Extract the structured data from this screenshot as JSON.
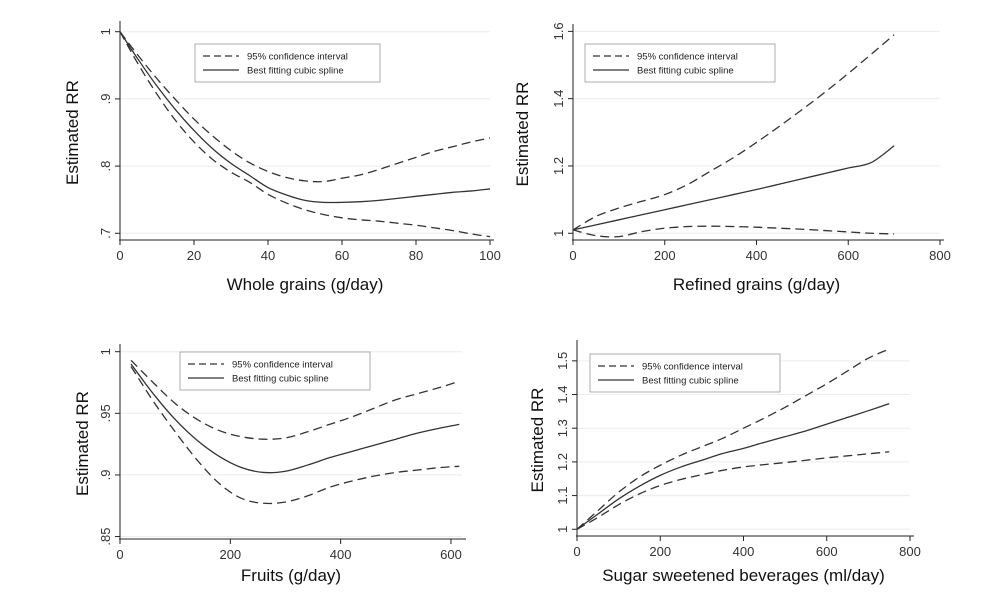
{
  "chart_data": [
    {
      "type": "line",
      "title": "",
      "xlabel": "Whole grains (g/day)",
      "ylabel": "Estimated RR",
      "xlim": [
        0,
        100
      ],
      "ylim": [
        0.69,
        1.01
      ],
      "x_ticks": [
        0,
        20,
        40,
        60,
        80,
        100
      ],
      "x_tick_labels": [
        "0",
        "20",
        "40",
        "60",
        "80",
        "100"
      ],
      "y_ticks": [
        0.7,
        0.8,
        0.9,
        1.0
      ],
      "y_tick_labels": [
        ".7",
        ".8",
        ".9",
        "1"
      ],
      "grid": true,
      "legend": {
        "placement": "top-center",
        "items": [
          "95% confidence interval",
          "Best fitting cubic spline"
        ]
      },
      "series": [
        {
          "name": "95% confidence interval",
          "style": "dashed",
          "x": [
            0,
            5,
            10,
            15,
            20,
            25,
            30,
            35,
            40,
            45,
            50,
            55,
            60,
            65,
            70,
            75,
            80,
            85,
            90,
            95,
            100
          ],
          "y": [
            1.0,
            0.951,
            0.907,
            0.868,
            0.836,
            0.81,
            0.791,
            0.776,
            0.758,
            0.745,
            0.735,
            0.728,
            0.723,
            0.72,
            0.718,
            0.715,
            0.712,
            0.708,
            0.704,
            0.699,
            0.695
          ]
        },
        {
          "name": "Best fitting cubic spline",
          "style": "solid",
          "x": [
            0,
            5,
            10,
            15,
            20,
            25,
            30,
            35,
            40,
            45,
            50,
            55,
            60,
            65,
            70,
            75,
            80,
            85,
            90,
            95,
            100
          ],
          "y": [
            1.0,
            0.958,
            0.919,
            0.884,
            0.853,
            0.826,
            0.804,
            0.786,
            0.768,
            0.757,
            0.749,
            0.746,
            0.746,
            0.747,
            0.749,
            0.752,
            0.755,
            0.758,
            0.761,
            0.763,
            0.766
          ]
        },
        {
          "name": "95% confidence interval",
          "style": "dashed",
          "x": [
            0,
            5,
            10,
            15,
            20,
            25,
            30,
            35,
            40,
            45,
            50,
            55,
            60,
            65,
            70,
            75,
            80,
            85,
            90,
            95,
            100
          ],
          "y": [
            1.0,
            0.964,
            0.93,
            0.899,
            0.87,
            0.845,
            0.823,
            0.805,
            0.792,
            0.783,
            0.778,
            0.777,
            0.782,
            0.787,
            0.795,
            0.804,
            0.813,
            0.822,
            0.829,
            0.836,
            0.842
          ]
        }
      ]
    },
    {
      "type": "line",
      "title": "",
      "xlabel": "Refined grains (g/day)",
      "ylabel": "Estimated RR",
      "xlim": [
        0,
        800
      ],
      "ylim": [
        0.98,
        1.61
      ],
      "x_ticks": [
        0,
        200,
        400,
        600,
        800
      ],
      "x_tick_labels": [
        "0",
        "200",
        "400",
        "600",
        "800"
      ],
      "y_ticks": [
        1.0,
        1.2,
        1.4,
        1.6
      ],
      "y_tick_labels": [
        "1",
        "1.2",
        "1.4",
        "1.6"
      ],
      "grid": true,
      "legend": {
        "placement": "top-left",
        "items": [
          "95% confidence interval",
          "Best fitting cubic spline"
        ]
      },
      "series": [
        {
          "name": "95% confidence interval",
          "style": "dashed",
          "x": [
            0,
            50,
            100,
            150,
            200,
            250,
            300,
            350,
            400,
            450,
            500,
            550,
            600,
            650,
            700
          ],
          "y": [
            1.01,
            0.993,
            0.99,
            1.005,
            1.015,
            1.02,
            1.021,
            1.02,
            1.018,
            1.015,
            1.012,
            1.008,
            1.004,
            1.0,
            0.998
          ]
        },
        {
          "name": "Best fitting cubic spline",
          "style": "solid",
          "x": [
            0,
            50,
            100,
            150,
            200,
            250,
            300,
            350,
            400,
            450,
            500,
            550,
            600,
            650,
            700
          ],
          "y": [
            1.01,
            1.025,
            1.04,
            1.055,
            1.07,
            1.085,
            1.1,
            1.115,
            1.13,
            1.146,
            1.162,
            1.178,
            1.194,
            1.21,
            1.26
          ]
        },
        {
          "name": "95% confidence interval",
          "style": "dashed",
          "x": [
            0,
            50,
            100,
            150,
            200,
            250,
            300,
            350,
            400,
            450,
            500,
            550,
            600,
            650,
            700
          ],
          "y": [
            1.01,
            1.05,
            1.075,
            1.095,
            1.115,
            1.145,
            1.185,
            1.225,
            1.27,
            1.318,
            1.368,
            1.42,
            1.475,
            1.532,
            1.59
          ]
        }
      ]
    },
    {
      "type": "line",
      "title": "",
      "xlabel": "Fruits (g/day)",
      "ylabel": "Estimated RR",
      "xlim": [
        0,
        620
      ],
      "ylim": [
        0.848,
        1.003
      ],
      "x_ticks": [
        0,
        200,
        400,
        600
      ],
      "x_tick_labels": [
        "0",
        "200",
        "400",
        "600"
      ],
      "y_ticks": [
        0.85,
        0.9,
        0.95,
        1.0
      ],
      "y_tick_labels": [
        ".85",
        ".9",
        ".95",
        "1"
      ],
      "grid": true,
      "legend": {
        "placement": "top-center",
        "items": [
          "95% confidence interval",
          "Best fitting cubic spline"
        ]
      },
      "series": [
        {
          "name": "95% confidence interval",
          "style": "dashed",
          "x": [
            20,
            60,
            100,
            140,
            180,
            220,
            260,
            300,
            340,
            380,
            420,
            460,
            500,
            540,
            580,
            615
          ],
          "y": [
            0.988,
            0.96,
            0.935,
            0.912,
            0.893,
            0.881,
            0.877,
            0.878,
            0.883,
            0.89,
            0.895,
            0.899,
            0.902,
            0.904,
            0.906,
            0.907
          ]
        },
        {
          "name": "Best fitting cubic spline",
          "style": "solid",
          "x": [
            20,
            60,
            100,
            140,
            180,
            220,
            260,
            300,
            340,
            380,
            420,
            460,
            500,
            540,
            580,
            615
          ],
          "y": [
            0.99,
            0.966,
            0.945,
            0.928,
            0.915,
            0.906,
            0.902,
            0.903,
            0.908,
            0.914,
            0.919,
            0.924,
            0.929,
            0.934,
            0.938,
            0.941
          ]
        },
        {
          "name": "95% confidence interval",
          "style": "dashed",
          "x": [
            20,
            60,
            100,
            140,
            180,
            220,
            260,
            300,
            340,
            380,
            420,
            460,
            500,
            540,
            580,
            615
          ],
          "y": [
            0.993,
            0.975,
            0.958,
            0.945,
            0.936,
            0.931,
            0.929,
            0.93,
            0.935,
            0.941,
            0.947,
            0.954,
            0.961,
            0.966,
            0.971,
            0.976
          ]
        }
      ]
    },
    {
      "type": "line",
      "title": "",
      "xlabel": "Sugar sweetened beverages (ml/day)",
      "ylabel": "Estimated RR",
      "xlim": [
        0,
        800
      ],
      "ylim": [
        0.98,
        1.55
      ],
      "x_ticks": [
        0,
        200,
        400,
        600,
        800
      ],
      "x_tick_labels": [
        "0",
        "200",
        "400",
        "600",
        "800"
      ],
      "y_ticks": [
        1.0,
        1.1,
        1.2,
        1.3,
        1.4,
        1.5
      ],
      "y_tick_labels": [
        "1",
        "1.1",
        "1.2",
        "1.3",
        "1.4",
        "1.5"
      ],
      "grid": true,
      "legend": {
        "placement": "top-left",
        "items": [
          "95% confidence interval",
          "Best fitting cubic spline"
        ]
      },
      "series": [
        {
          "name": "95% confidence interval",
          "style": "dashed",
          "x": [
            0,
            50,
            100,
            150,
            200,
            250,
            300,
            350,
            400,
            450,
            500,
            550,
            600,
            650,
            700,
            750
          ],
          "y": [
            1.0,
            1.035,
            1.073,
            1.105,
            1.13,
            1.148,
            1.162,
            1.175,
            1.185,
            1.192,
            1.198,
            1.205,
            1.212,
            1.218,
            1.224,
            1.23
          ]
        },
        {
          "name": "Best fitting cubic spline",
          "style": "solid",
          "x": [
            0,
            50,
            100,
            150,
            200,
            250,
            300,
            350,
            400,
            450,
            500,
            550,
            600,
            650,
            700,
            750
          ],
          "y": [
            1.0,
            1.045,
            1.09,
            1.128,
            1.16,
            1.185,
            1.205,
            1.225,
            1.24,
            1.258,
            1.275,
            1.292,
            1.312,
            1.332,
            1.352,
            1.373
          ]
        },
        {
          "name": "95% confidence interval",
          "style": "dashed",
          "x": [
            0,
            50,
            100,
            150,
            200,
            250,
            300,
            350,
            400,
            450,
            500,
            550,
            600,
            650,
            700,
            750
          ],
          "y": [
            1.0,
            1.055,
            1.11,
            1.155,
            1.19,
            1.22,
            1.245,
            1.27,
            1.3,
            1.33,
            1.362,
            1.397,
            1.432,
            1.47,
            1.508,
            1.535
          ]
        }
      ]
    }
  ]
}
